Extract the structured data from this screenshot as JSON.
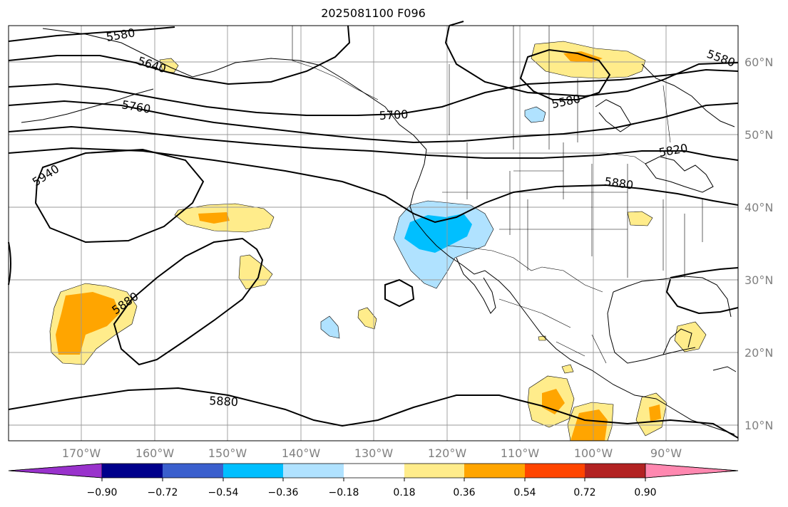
{
  "title": "2025081100 F096",
  "lon_labels": [
    "170°W",
    "160°W",
    "150°W",
    "140°W",
    "130°W",
    "120°W",
    "110°W",
    "100°W",
    "90°W"
  ],
  "lat_labels": [
    "60°N",
    "50°N",
    "40°N",
    "30°N",
    "20°N",
    "10°N"
  ],
  "contour_labels": [
    "5580",
    "5640",
    "5760",
    "5700",
    "5940",
    "5880",
    "5880",
    "5820",
    "5580",
    "5580",
    "5880"
  ],
  "colorbar": {
    "ticks": [
      "−0.90",
      "−0.72",
      "−0.54",
      "−0.36",
      "−0.18",
      "0.18",
      "0.36",
      "0.54",
      "0.72",
      "0.90"
    ],
    "colors": [
      "#9932cc",
      "#00008b",
      "#3a5fcd",
      "#00bfff",
      "#b0e2ff",
      "#ffffff",
      "#ffec8b",
      "#ffa500",
      "#ff4500",
      "#b22222",
      "#ff88b0"
    ]
  }
}
